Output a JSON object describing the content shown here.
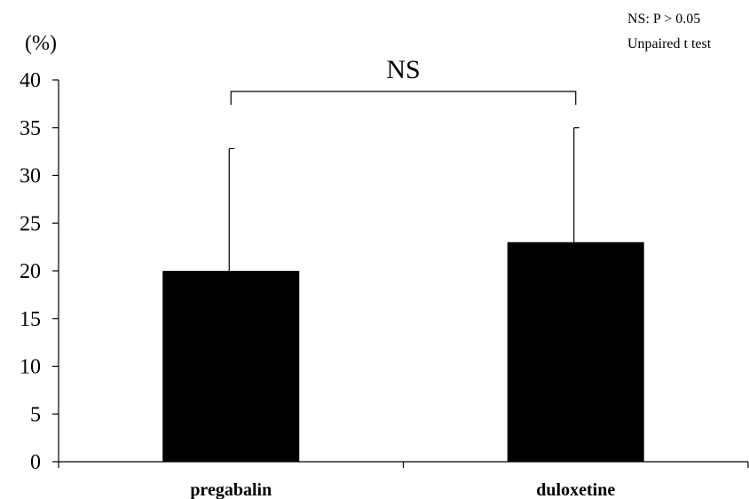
{
  "chart_data": {
    "type": "bar",
    "categories": [
      "pregabalin",
      "duloxetine"
    ],
    "values": [
      20,
      23
    ],
    "error_upper": [
      32.8,
      35
    ],
    "ylim": [
      0,
      40
    ],
    "yticks": [
      0,
      5,
      10,
      15,
      20,
      25,
      30,
      35,
      40
    ],
    "ylabel": "(%)",
    "xlabel": "",
    "title": "",
    "bar_color": "#000000",
    "grid": false,
    "significance": {
      "between": [
        "pregabalin",
        "duloxetine"
      ],
      "label": "NS"
    },
    "notes": [
      "NS: P > 0.05",
      "Unpaired t test"
    ]
  }
}
